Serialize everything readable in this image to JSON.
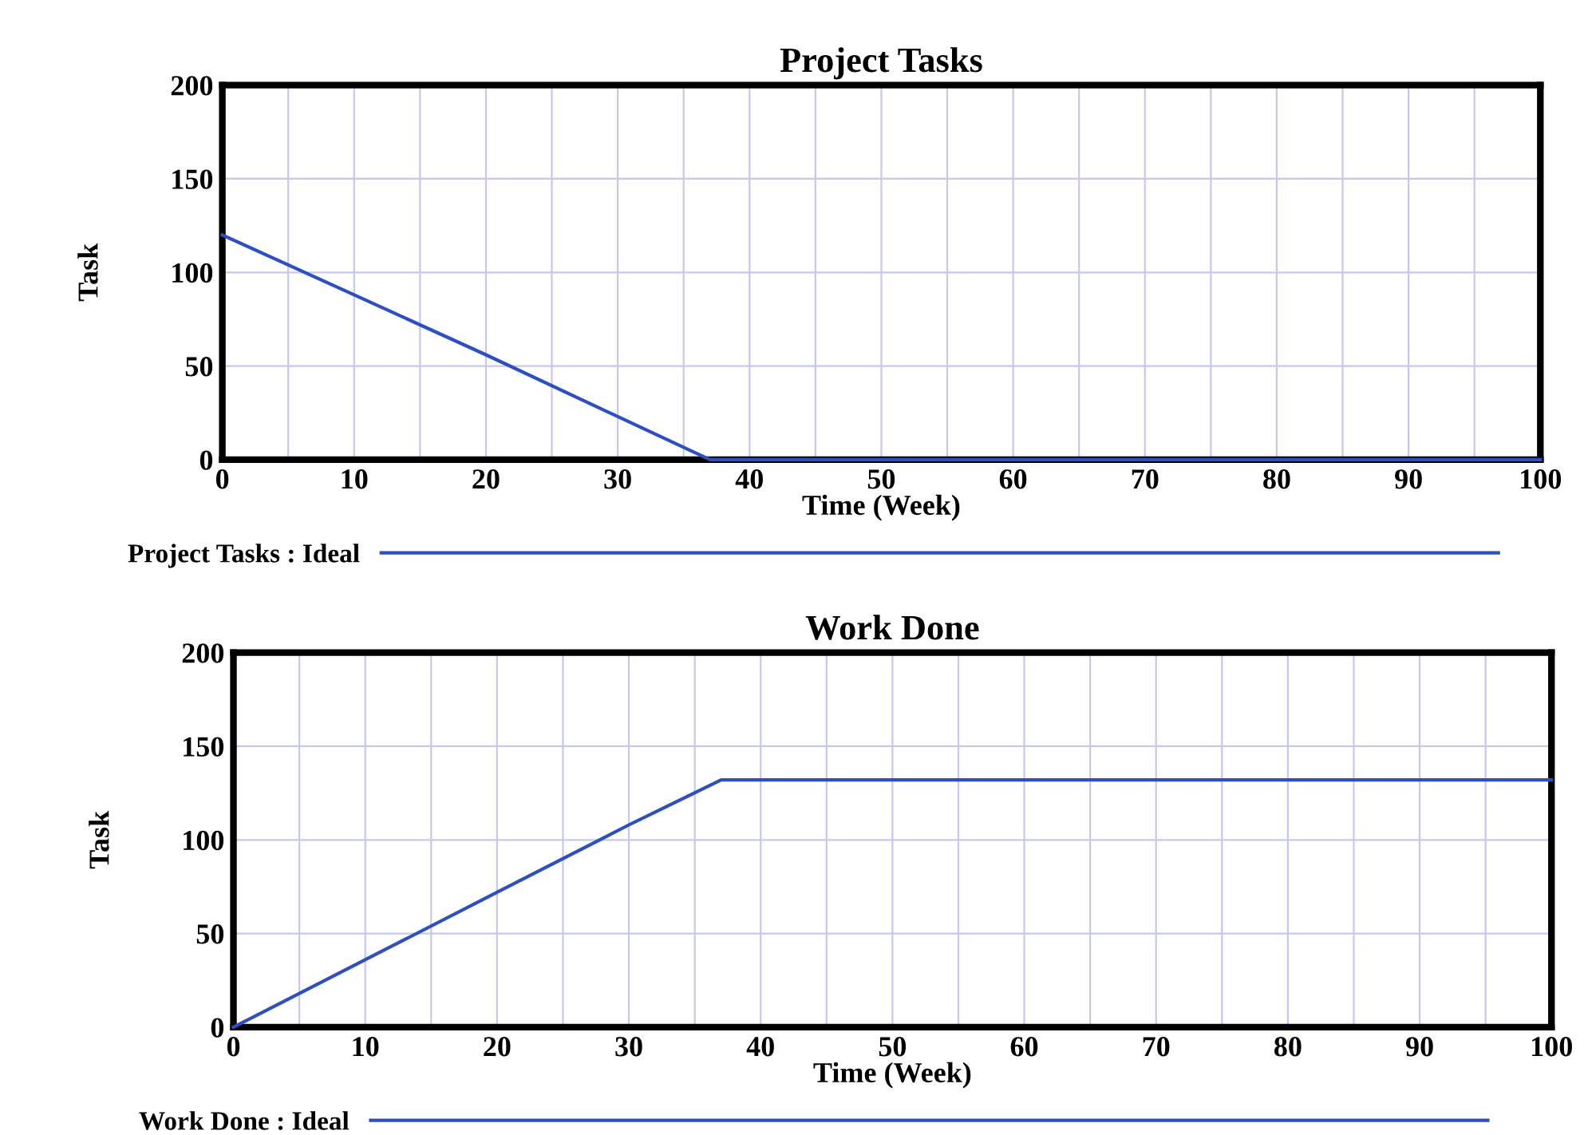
{
  "chart_data": [
    {
      "type": "line",
      "title": "Project Tasks",
      "xlabel": "Time (Week)",
      "ylabel": "Task",
      "x": [
        0,
        10,
        20,
        30,
        37,
        100
      ],
      "xlim": [
        0,
        100
      ],
      "ylim": [
        0,
        200
      ],
      "xticks": [
        0,
        {
          "value": 5,
          "label": null
        },
        10,
        {
          "value": 15,
          "label": null
        },
        20,
        {
          "value": 25,
          "label": null
        },
        30,
        {
          "value": 35,
          "label": null
        },
        40,
        {
          "value": 45,
          "label": null
        },
        50,
        {
          "value": 55,
          "label": null
        },
        60,
        {
          "value": 65,
          "label": null
        },
        70,
        {
          "value": 75,
          "label": null
        },
        80,
        {
          "value": 85,
          "label": null
        },
        90,
        {
          "value": 95,
          "label": null
        },
        100
      ],
      "yticks": [
        0,
        50,
        100,
        150,
        200
      ],
      "grid": true,
      "legend": "bottom",
      "line_style": "solid",
      "series": [
        {
          "name": "Project Tasks : Ideal",
          "color": "#2e4fc0",
          "values": [
            120,
            88,
            56,
            23,
            0,
            0
          ]
        }
      ]
    },
    {
      "type": "line",
      "title": "Work Done",
      "xlabel": "Time (Week)",
      "ylabel": "Task",
      "x": [
        0,
        10,
        20,
        30,
        37,
        100
      ],
      "xlim": [
        0,
        100
      ],
      "ylim": [
        0,
        200
      ],
      "xticks": [
        0,
        {
          "value": 5,
          "label": null
        },
        10,
        {
          "value": 15,
          "label": null
        },
        20,
        {
          "value": 25,
          "label": null
        },
        30,
        {
          "value": 35,
          "label": null
        },
        40,
        {
          "value": 45,
          "label": null
        },
        50,
        {
          "value": 55,
          "label": null
        },
        60,
        {
          "value": 65,
          "label": null
        },
        70,
        {
          "value": 75,
          "label": null
        },
        80,
        {
          "value": 85,
          "label": null
        },
        90,
        {
          "value": 95,
          "label": null
        },
        100
      ],
      "yticks": [
        0,
        50,
        100,
        150,
        200
      ],
      "grid": true,
      "legend": "bottom",
      "line_style": "solid",
      "series": [
        {
          "name": "Work Done : Ideal",
          "color": "#2e4fc0",
          "values": [
            0,
            36,
            72,
            108,
            132,
            132
          ]
        }
      ]
    }
  ]
}
